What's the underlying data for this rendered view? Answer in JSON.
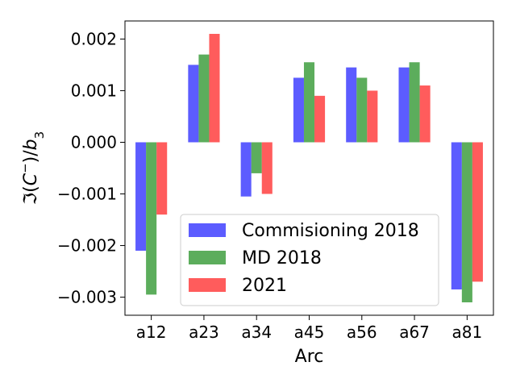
{
  "chart_data": {
    "type": "bar",
    "title": "",
    "xlabel": "Arc",
    "ylabel": "ℑ(C⁻)/b₃",
    "ylabel_parts": {
      "prefix": "ℑ(",
      "c": "C",
      "sup": "−",
      "mid": ")/",
      "b": "b",
      "sub": "3"
    },
    "categories": [
      "a12",
      "a23",
      "a34",
      "a45",
      "a56",
      "a67",
      "a81"
    ],
    "ylim": [
      -0.00335,
      0.00235
    ],
    "yticks": [
      -0.003,
      -0.002,
      -0.001,
      0.0,
      0.001,
      0.002
    ],
    "ytick_labels": [
      "−0.003",
      "−0.002",
      "−0.001",
      "0.000",
      "0.001",
      "0.002"
    ],
    "grid": false,
    "legend_position": "lower-center",
    "series": [
      {
        "name": "Commisioning 2018",
        "color": "#3333ff",
        "values": [
          -0.0021,
          0.0015,
          -0.00105,
          0.00125,
          0.00145,
          0.00145,
          -0.00285
        ]
      },
      {
        "name": "MD 2018",
        "color": "#339933",
        "values": [
          -0.00295,
          0.0017,
          -0.0006,
          0.00155,
          0.00125,
          0.00155,
          -0.0031
        ]
      },
      {
        "name": "2021",
        "color": "#ff3333",
        "values": [
          -0.0014,
          0.0021,
          -0.001,
          0.0009,
          0.001,
          0.0011,
          -0.0027
        ]
      }
    ]
  }
}
